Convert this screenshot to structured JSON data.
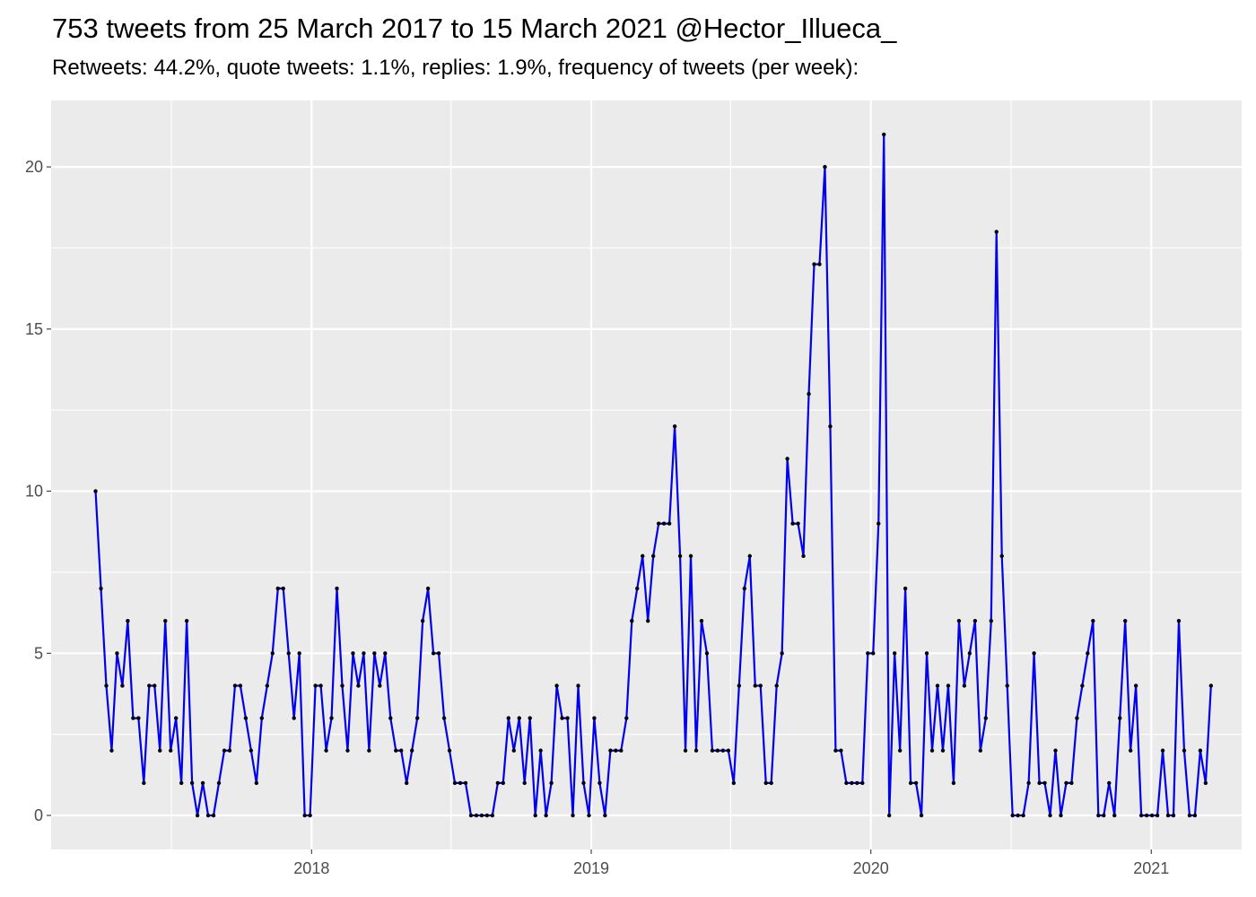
{
  "chart_data": {
    "type": "line",
    "title": "753 tweets from 25 March 2017 to 15 March 2021 @Hector_Illueca_",
    "subtitle": "Retweets: 44.2%, quote tweets: 1.1%, replies: 1.9%, frequency of tweets (per week):",
    "xlabel": "",
    "ylabel": "",
    "x_axis": {
      "type": "date",
      "range": [
        "2017-01-26",
        "2021-04-29"
      ],
      "major_ticks": [
        "2018-01-01",
        "2019-01-01",
        "2020-01-01",
        "2021-01-01"
      ],
      "tick_labels": [
        "2018",
        "2019",
        "2020",
        "2021"
      ],
      "minor_gridlines_at": [
        "2017-07-02",
        "2018-07-02",
        "2019-07-02",
        "2020-07-02"
      ]
    },
    "y_axis": {
      "range": [
        -1.05,
        22.05
      ],
      "ticks": [
        0,
        5,
        10,
        15,
        20
      ],
      "tick_labels": [
        "0",
        "5",
        "10",
        "15",
        "20"
      ]
    },
    "grid": true,
    "legend": "none",
    "colors": {
      "line": "#0000ee",
      "points": "#000000",
      "panel": "#ebebeb",
      "grid": "#ffffff"
    },
    "series": [
      {
        "start_date": "2017-03-25",
        "interval": "week",
        "values": [
          10,
          7,
          4,
          2,
          5,
          4,
          6,
          3,
          3,
          1,
          4,
          4,
          2,
          6,
          2,
          3,
          1,
          6,
          1,
          0,
          1,
          0,
          0,
          1,
          2,
          2,
          4,
          4,
          3,
          2,
          1,
          3,
          4,
          5,
          7,
          7,
          5,
          3,
          5,
          0,
          0,
          4,
          4,
          2,
          3,
          7,
          4,
          2,
          5,
          4,
          5,
          2,
          5,
          4,
          5,
          3,
          2,
          2,
          1,
          2,
          3,
          6,
          7,
          5,
          5,
          3,
          2,
          1,
          1,
          1,
          0,
          0,
          0,
          0,
          0,
          1,
          1,
          3,
          2,
          3,
          1,
          3,
          0,
          2,
          0,
          1,
          4,
          3,
          3,
          0,
          4,
          1,
          0,
          3,
          1,
          0,
          2,
          2,
          2,
          3,
          6,
          7,
          8,
          6,
          8,
          9,
          9,
          9,
          12,
          8,
          2,
          8,
          2,
          6,
          5,
          2,
          2,
          2,
          2,
          1,
          4,
          7,
          8,
          4,
          4,
          1,
          1,
          4,
          5,
          11,
          9,
          9,
          8,
          13,
          17,
          17,
          20,
          12,
          2,
          2,
          1,
          1,
          1,
          1,
          5,
          5,
          9,
          21,
          0,
          5,
          2,
          7,
          1,
          1,
          0,
          5,
          2,
          4,
          2,
          4,
          1,
          6,
          4,
          5,
          6,
          2,
          3,
          6,
          18,
          8,
          4,
          0,
          0,
          0,
          1,
          5,
          1,
          1,
          0,
          2,
          0,
          1,
          1,
          3,
          4,
          5,
          6,
          0,
          0,
          1,
          0,
          3,
          6,
          2,
          4,
          0,
          0,
          0,
          0,
          2,
          0,
          0,
          6,
          2,
          0,
          0,
          2,
          1,
          4
        ]
      }
    ]
  }
}
